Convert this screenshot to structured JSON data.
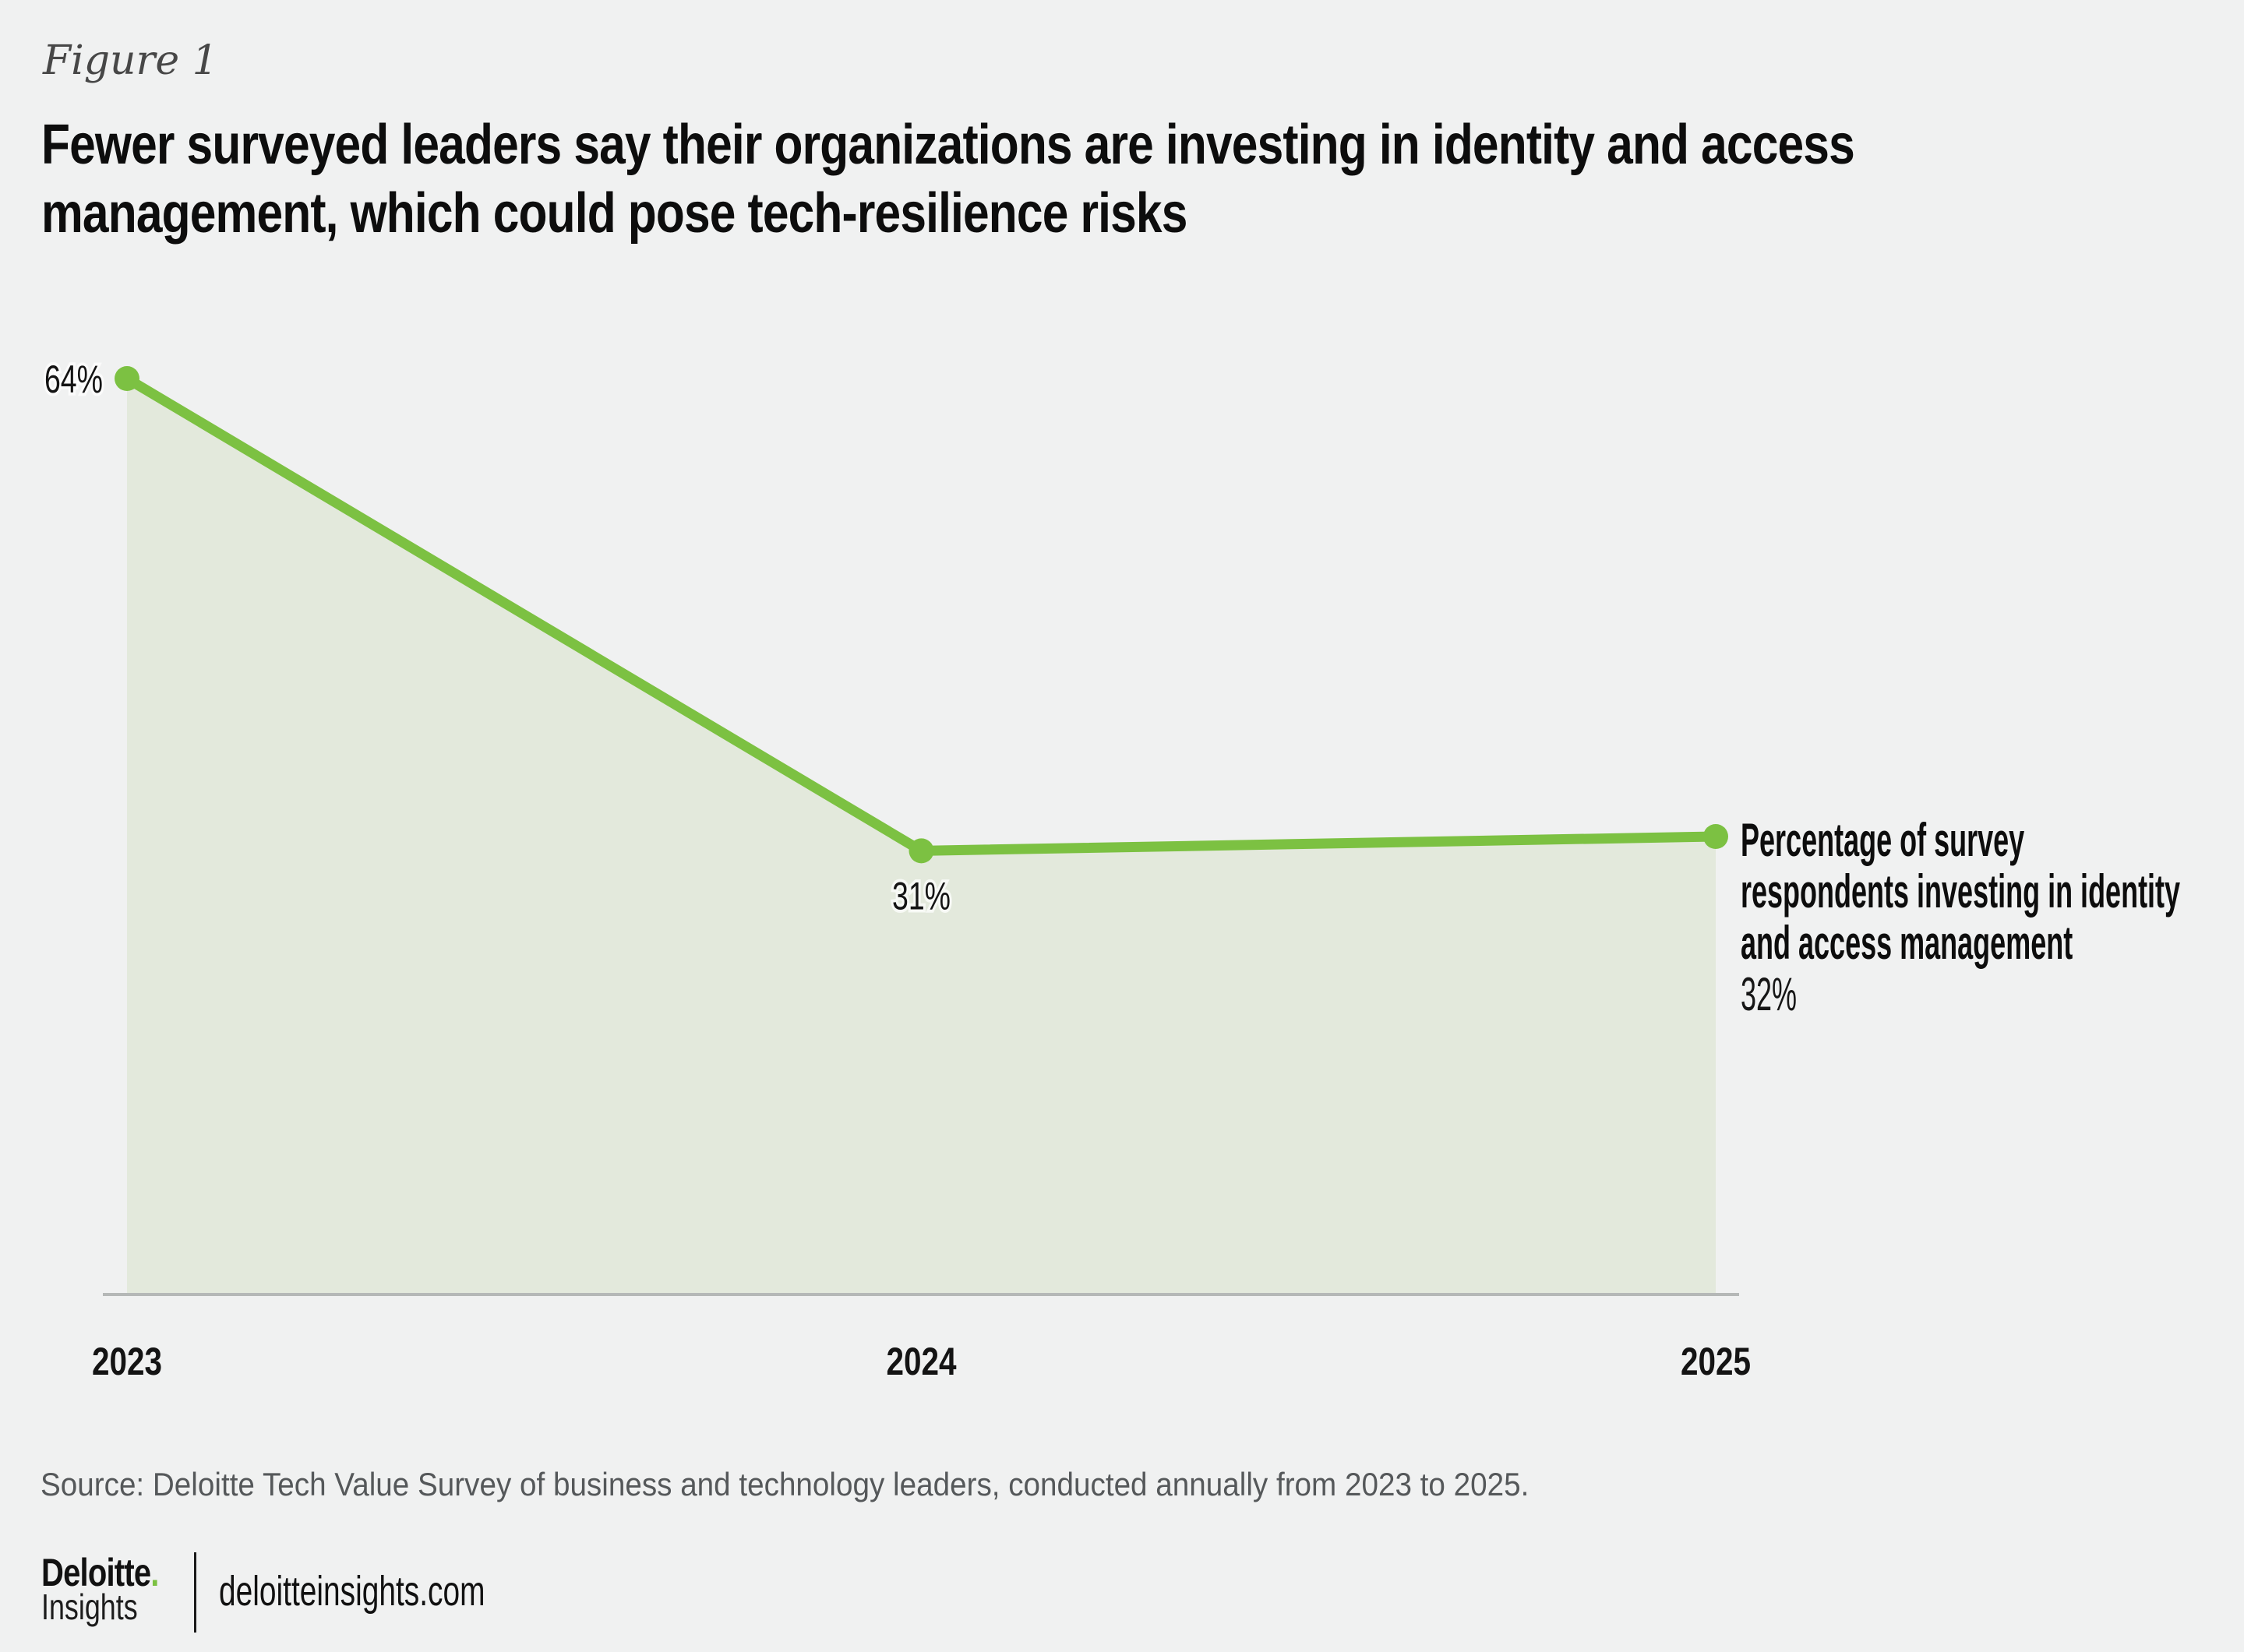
{
  "figure_label": "Figure 1",
  "title": {
    "full": "Fewer surveyed leaders say their organizations are investing in identity and access management, which could pose tech-resilience risks",
    "lines": [
      "Fewer surveyed leaders say their organizations are investing in identity and access",
      "management, which could pose tech-resilience risks"
    ]
  },
  "chart_data": {
    "type": "area",
    "categories": [
      "2023",
      "2024",
      "2025"
    ],
    "series": [
      {
        "name": "Percentage of survey respondents investing in identity and access management",
        "values": [
          64,
          31,
          32
        ]
      }
    ],
    "point_labels": [
      "64%",
      "31%",
      "32%"
    ],
    "ylim": [
      0,
      70
    ],
    "grid": false,
    "legend_position": "right-of-last-point",
    "colors": {
      "line": "#7CC142",
      "marker": "#7CC142",
      "area_fill": "#E3E9DC",
      "axis": "#B5B8B7"
    }
  },
  "legend": {
    "lines": [
      "Percentage of survey",
      "respondents investing in identity",
      "and access management"
    ],
    "value": "32%"
  },
  "source": "Source: Deloitte Tech Value Survey of business and technology leaders, conducted annually from 2023 to 2025.",
  "footer": {
    "brand": "Deloitte",
    "brand_dot": ".",
    "brand_dot_color": "#7CC142",
    "brand_sub": "Insights",
    "site": "deloitteinsights.com"
  }
}
